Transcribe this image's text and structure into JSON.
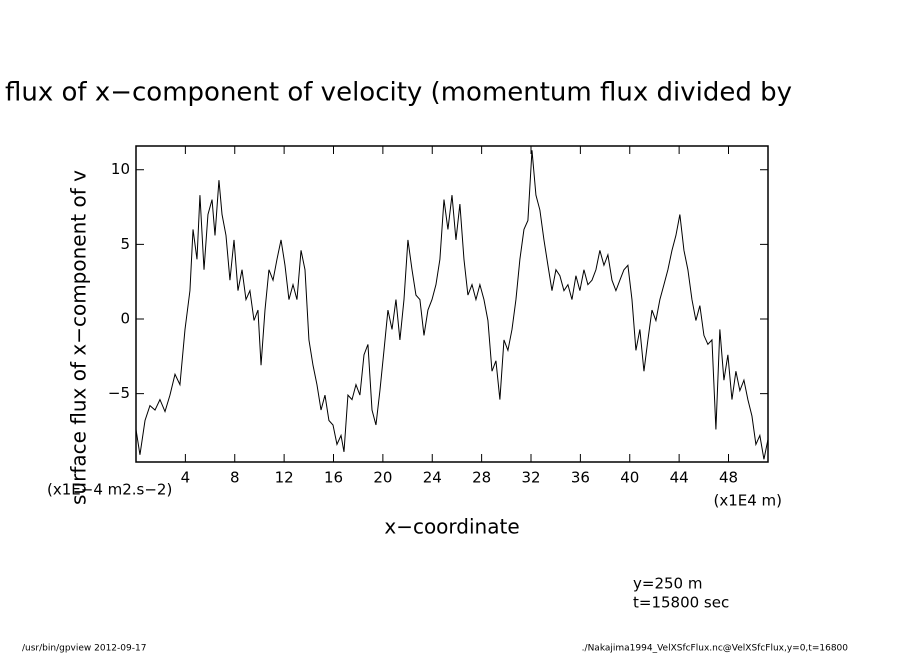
{
  "chart_data": {
    "type": "line",
    "title": "flux of x−component of velocity (momentum flux divided by",
    "y_axis_label": "surface flux of x−component of v",
    "x_axis_label": "x−coordinate",
    "y_units": "(x1E−4 m2.s−2)",
    "x_units": "(x1E4 m)",
    "annotations": [
      "y=250 m",
      "t=15800 sec"
    ],
    "footer_left": "/usr/bin/gpview   2012-09-17",
    "footer_right": "./Nakajima1994_VelXSfcFlux.nc@VelXSfcFlux,y=0,t=16800",
    "xlim": [
      0,
      51.2
    ],
    "ylim": [
      -9.58,
      11.59
    ],
    "xticks": [
      4,
      8,
      12,
      16,
      20,
      24,
      28,
      32,
      36,
      40,
      44,
      48
    ],
    "yticks": [
      {
        "value": -5,
        "label": "−5"
      },
      0,
      5,
      10
    ],
    "x": [
      0,
      0.32,
      0.73,
      1.13,
      1.54,
      1.94,
      2.35,
      2.75,
      3.16,
      3.56,
      3.97,
      4.37,
      4.62,
      4.94,
      5.18,
      5.51,
      5.83,
      6.16,
      6.4,
      6.72,
      6.97,
      7.29,
      7.61,
      7.94,
      8.26,
      8.59,
      8.91,
      9.23,
      9.56,
      9.88,
      10.13,
      10.45,
      10.77,
      11.1,
      11.42,
      11.75,
      12.07,
      12.39,
      12.72,
      13.04,
      13.37,
      13.69,
      14.01,
      14.34,
      14.66,
      14.99,
      15.31,
      15.63,
      15.96,
      16.28,
      16.61,
      16.85,
      17.17,
      17.5,
      17.82,
      18.14,
      18.47,
      18.79,
      19.12,
      19.44,
      19.76,
      20.09,
      20.41,
      20.74,
      21.06,
      21.38,
      21.71,
      22.03,
      22.36,
      22.68,
      23.0,
      23.33,
      23.65,
      23.98,
      24.3,
      24.62,
      24.95,
      25.27,
      25.6,
      25.92,
      26.24,
      26.57,
      26.89,
      27.22,
      27.54,
      27.86,
      28.19,
      28.51,
      28.84,
      29.16,
      29.48,
      29.81,
      30.13,
      30.46,
      30.78,
      31.1,
      31.43,
      31.75,
      32.08,
      32.4,
      32.72,
      33.05,
      33.37,
      33.7,
      34.02,
      34.34,
      34.67,
      34.99,
      35.32,
      35.64,
      35.96,
      36.29,
      36.61,
      36.94,
      37.26,
      37.58,
      37.91,
      38.23,
      38.56,
      38.88,
      39.2,
      39.53,
      39.85,
      40.18,
      40.5,
      40.82,
      41.15,
      41.47,
      41.8,
      42.12,
      42.44,
      42.77,
      43.09,
      43.42,
      43.74,
      44.06,
      44.39,
      44.71,
      45.04,
      45.36,
      45.68,
      46.01,
      46.33,
      46.66,
      46.98,
      47.3,
      47.63,
      47.95,
      48.28,
      48.6,
      48.92,
      49.25,
      49.57,
      49.9,
      50.22,
      50.54,
      50.87,
      51.19
    ],
    "series": [
      {
        "color": "#000000",
        "values": [
          -7.4,
          -9.1,
          -6.8,
          -5.8,
          -6.1,
          -5.4,
          -6.2,
          -5.1,
          -3.7,
          -4.4,
          -0.7,
          1.9,
          6.0,
          4.0,
          8.3,
          3.3,
          7.0,
          8.0,
          5.6,
          9.3,
          7.0,
          5.6,
          2.6,
          5.3,
          1.9,
          3.3,
          1.3,
          1.9,
          -0.1,
          0.6,
          -3.1,
          0.6,
          3.3,
          2.6,
          4.0,
          5.3,
          3.6,
          1.3,
          2.3,
          1.3,
          4.6,
          3.3,
          -1.4,
          -3.1,
          -4.4,
          -6.1,
          -5.1,
          -6.8,
          -7.1,
          -8.4,
          -7.8,
          -8.9,
          -5.1,
          -5.4,
          -4.4,
          -5.1,
          -2.4,
          -1.7,
          -6.1,
          -7.1,
          -4.8,
          -2.1,
          0.6,
          -0.7,
          1.3,
          -1.4,
          1.3,
          5.3,
          3.3,
          1.6,
          1.3,
          -1.1,
          0.6,
          1.3,
          2.3,
          4.0,
          8.0,
          6.0,
          8.3,
          5.3,
          7.7,
          4.0,
          1.6,
          2.3,
          1.3,
          2.3,
          1.3,
          -0.1,
          -3.5,
          -2.8,
          -5.4,
          -1.4,
          -2.1,
          -0.7,
          1.3,
          4.0,
          6.0,
          6.6,
          11.3,
          8.3,
          7.3,
          5.3,
          3.6,
          1.9,
          3.3,
          2.9,
          1.9,
          2.3,
          1.3,
          2.9,
          1.9,
          3.3,
          2.3,
          2.6,
          3.3,
          4.6,
          3.6,
          4.3,
          2.6,
          1.9,
          2.6,
          3.3,
          3.6,
          1.3,
          -2.1,
          -0.7,
          -3.5,
          -1.4,
          0.6,
          -0.1,
          1.3,
          2.3,
          3.3,
          4.6,
          5.6,
          7.0,
          4.6,
          3.3,
          1.3,
          -0.1,
          0.9,
          -1.1,
          -1.7,
          -1.4,
          -7.4,
          -0.7,
          -4.1,
          -2.4,
          -5.4,
          -3.5,
          -4.8,
          -4.1,
          -5.4,
          -6.5,
          -8.4,
          -7.8,
          -9.4,
          -8.1
        ]
      }
    ]
  }
}
